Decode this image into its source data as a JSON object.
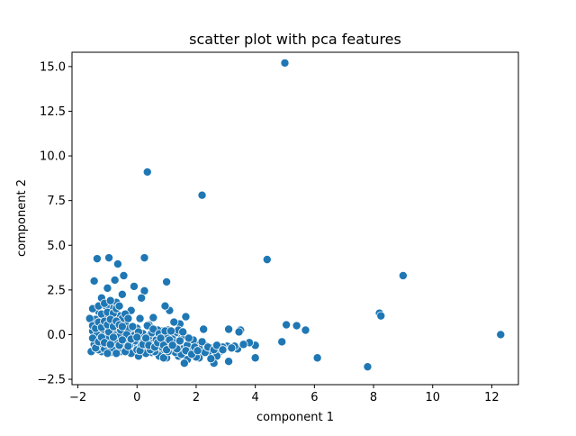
{
  "chart_data": {
    "type": "scatter",
    "title": "scatter plot with pca features",
    "xlabel": "component 1",
    "ylabel": "component 2",
    "xlim": [
      -2.2,
      12.9
    ],
    "ylim": [
      -2.8,
      15.8
    ],
    "xticks": [
      -2,
      0,
      2,
      4,
      6,
      8,
      10,
      12
    ],
    "yticks": [
      -2.5,
      0.0,
      2.5,
      5.0,
      7.5,
      10.0,
      12.5,
      15.0
    ],
    "xtick_labels": [
      "−2",
      "0",
      "2",
      "4",
      "6",
      "8",
      "10",
      "12"
    ],
    "ytick_labels": [
      "−2.5",
      "0.0",
      "2.5",
      "5.0",
      "7.5",
      "10.0",
      "12.5",
      "15.0"
    ],
    "grid": false,
    "legend": "none",
    "colors": {
      "marker": "#1f77b4",
      "marker_edge": "#ffffff",
      "axis": "#000000"
    },
    "series": [
      {
        "name": "pca features",
        "points": [
          [
            5.0,
            15.2
          ],
          [
            0.35,
            9.1
          ],
          [
            2.2,
            7.8
          ],
          [
            4.4,
            4.2
          ],
          [
            12.3,
            0.0
          ],
          [
            9.0,
            3.3
          ],
          [
            8.2,
            1.2
          ],
          [
            8.25,
            1.05
          ],
          [
            7.8,
            -1.8
          ],
          [
            6.1,
            -1.3
          ],
          [
            5.7,
            0.25
          ],
          [
            5.4,
            0.5
          ],
          [
            5.05,
            0.55
          ],
          [
            4.9,
            -0.4
          ],
          [
            4.0,
            -1.3
          ],
          [
            4.0,
            -0.6
          ],
          [
            3.8,
            -0.45
          ],
          [
            3.5,
            0.25
          ],
          [
            3.45,
            0.15
          ],
          [
            3.4,
            -0.8
          ],
          [
            3.3,
            -0.65
          ],
          [
            3.1,
            0.3
          ],
          [
            3.1,
            -1.5
          ],
          [
            3.05,
            -0.65
          ],
          [
            2.9,
            -0.7
          ],
          [
            2.8,
            -0.95
          ],
          [
            2.7,
            -1.2
          ],
          [
            2.6,
            -1.6
          ],
          [
            2.5,
            -0.75
          ],
          [
            2.4,
            -1.05
          ],
          [
            2.3,
            -0.6
          ],
          [
            2.25,
            0.3
          ],
          [
            2.2,
            -0.9
          ],
          [
            2.1,
            -1.3
          ],
          [
            2.0,
            -0.55
          ],
          [
            1.9,
            -1.05
          ],
          [
            1.85,
            -0.65
          ],
          [
            1.7,
            -1.4
          ],
          [
            1.65,
            1.0
          ],
          [
            1.6,
            -1.6
          ],
          [
            1.55,
            -0.8
          ],
          [
            1.5,
            -0.2
          ],
          [
            1.45,
            0.6
          ],
          [
            1.4,
            -1.2
          ],
          [
            1.35,
            -0.5
          ],
          [
            1.3,
            0.1
          ],
          [
            1.25,
            0.7
          ],
          [
            1.2,
            -0.9
          ],
          [
            1.1,
            1.35
          ],
          [
            1.05,
            0.25
          ],
          [
            1.0,
            -1.3
          ],
          [
            1.0,
            2.95
          ],
          [
            0.95,
            1.6
          ],
          [
            0.9,
            -0.4
          ],
          [
            0.85,
            0.2
          ],
          [
            0.8,
            -0.9
          ],
          [
            0.75,
            -1.2
          ],
          [
            0.7,
            0.25
          ],
          [
            0.6,
            -0.5
          ],
          [
            0.55,
            0.95
          ],
          [
            0.5,
            -1.0
          ],
          [
            0.45,
            -0.2
          ],
          [
            0.4,
            0.55
          ],
          [
            0.3,
            -0.7
          ],
          [
            0.25,
            4.3
          ],
          [
            0.25,
            2.45
          ],
          [
            0.2,
            -0.3
          ],
          [
            0.15,
            2.05
          ],
          [
            0.1,
            0.9
          ],
          [
            0.05,
            -1.2
          ],
          [
            0.0,
            0.35
          ],
          [
            -0.05,
            -0.55
          ],
          [
            -0.1,
            2.7
          ],
          [
            -0.15,
            -0.9
          ],
          [
            -0.2,
            1.35
          ],
          [
            -0.25,
            0.2
          ],
          [
            -0.3,
            -0.3
          ],
          [
            -0.4,
            0.6
          ],
          [
            -0.45,
            3.3
          ],
          [
            -0.5,
            2.25
          ],
          [
            -0.55,
            -0.95
          ],
          [
            -0.6,
            1.05
          ],
          [
            -0.65,
            3.95
          ],
          [
            -0.7,
            1.8
          ],
          [
            -0.7,
            0.2
          ],
          [
            -0.75,
            3.05
          ],
          [
            -0.8,
            -0.4
          ],
          [
            -0.85,
            1.45
          ],
          [
            -0.9,
            0.5
          ],
          [
            -0.95,
            4.3
          ],
          [
            -1.0,
            -0.7
          ],
          [
            -1.0,
            2.6
          ],
          [
            -1.05,
            1.6
          ],
          [
            -1.1,
            0.1
          ],
          [
            -1.15,
            1.0
          ],
          [
            -1.2,
            2.05
          ],
          [
            -1.2,
            -0.95
          ],
          [
            -1.25,
            0.55
          ],
          [
            -1.3,
            1.3
          ],
          [
            -1.35,
            4.25
          ],
          [
            -1.4,
            -0.3
          ],
          [
            -1.4,
            0.85
          ],
          [
            -1.45,
            3.0
          ],
          [
            -1.5,
            0.2
          ],
          [
            -1.5,
            1.45
          ],
          [
            -1.55,
            -0.95
          ],
          [
            -1.6,
            0.9
          ],
          [
            -1.3,
            -0.85
          ],
          [
            -1.2,
            -0.5
          ],
          [
            -1.1,
            -0.8
          ],
          [
            -1.0,
            -0.2
          ],
          [
            -0.9,
            -1.0
          ],
          [
            -0.8,
            0.85
          ],
          [
            -0.7,
            -0.75
          ],
          [
            -0.6,
            -0.1
          ],
          [
            -0.5,
            -0.8
          ],
          [
            -0.4,
            -0.4
          ],
          [
            -0.3,
            0.3
          ],
          [
            -0.2,
            -1.05
          ],
          [
            -0.1,
            -0.05
          ],
          [
            0.0,
            -0.85
          ],
          [
            0.1,
            -0.45
          ],
          [
            0.2,
            0.05
          ],
          [
            0.3,
            -1.05
          ],
          [
            0.4,
            -0.1
          ],
          [
            0.5,
            0.1
          ],
          [
            0.6,
            -0.95
          ],
          [
            0.7,
            -0.2
          ],
          [
            0.8,
            -0.55
          ],
          [
            0.9,
            -1.3
          ],
          [
            1.0,
            0.0
          ],
          [
            1.1,
            -0.65
          ],
          [
            1.2,
            -0.25
          ],
          [
            1.3,
            -1.0
          ],
          [
            1.4,
            0.25
          ],
          [
            1.5,
            -1.1
          ],
          [
            1.6,
            -0.05
          ],
          [
            1.7,
            -0.6
          ],
          [
            1.8,
            -0.95
          ],
          [
            1.9,
            -0.3
          ],
          [
            2.0,
            -1.25
          ],
          [
            2.1,
            -0.75
          ],
          [
            2.2,
            -0.4
          ],
          [
            2.3,
            -1.0
          ],
          [
            2.4,
            -0.7
          ],
          [
            2.5,
            -1.35
          ],
          [
            2.6,
            -0.85
          ],
          [
            2.7,
            -0.6
          ],
          [
            2.9,
            -0.85
          ],
          [
            3.2,
            -0.75
          ],
          [
            3.6,
            -0.55
          ],
          [
            -1.45,
            -0.55
          ],
          [
            -1.35,
            0.0
          ],
          [
            -1.25,
            -0.3
          ],
          [
            -1.15,
            0.3
          ],
          [
            -1.05,
            -0.5
          ],
          [
            -0.95,
            0.15
          ],
          [
            -0.85,
            -0.75
          ],
          [
            -0.75,
            0.4
          ],
          [
            -0.65,
            -0.5
          ],
          [
            -0.55,
            0.25
          ],
          [
            -0.45,
            -0.65
          ],
          [
            -0.35,
            0.0
          ],
          [
            -0.25,
            -0.6
          ],
          [
            -0.15,
            0.45
          ],
          [
            -0.05,
            -0.35
          ],
          [
            0.05,
            0.15
          ],
          [
            0.15,
            -0.6
          ],
          [
            0.35,
            0.5
          ],
          [
            0.45,
            -0.85
          ],
          [
            0.55,
            0.3
          ],
          [
            0.65,
            -0.3
          ],
          [
            0.75,
            0.05
          ],
          [
            0.85,
            -0.7
          ],
          [
            0.95,
            0.2
          ],
          [
            1.05,
            -0.95
          ],
          [
            1.15,
            0.2
          ],
          [
            1.25,
            -0.45
          ],
          [
            1.35,
            -0.8
          ],
          [
            1.45,
            -0.35
          ],
          [
            1.55,
            0.15
          ],
          [
            1.65,
            -0.9
          ],
          [
            1.75,
            -0.2
          ],
          [
            1.85,
            -1.1
          ],
          [
            1.95,
            -0.7
          ],
          [
            2.05,
            -0.9
          ],
          [
            -1.5,
            0.5
          ],
          [
            -1.3,
            1.6
          ],
          [
            -1.2,
            1.15
          ],
          [
            -1.1,
            1.75
          ],
          [
            -1.0,
            1.25
          ],
          [
            -0.9,
            1.9
          ],
          [
            -0.8,
            1.2
          ],
          [
            -0.7,
            1.45
          ],
          [
            -0.6,
            1.6
          ],
          [
            -0.5,
            0.9
          ],
          [
            -0.4,
            1.15
          ],
          [
            -0.3,
            0.9
          ],
          [
            -1.4,
            0.35
          ],
          [
            -1.3,
            0.7
          ],
          [
            -1.2,
            0.4
          ],
          [
            -1.1,
            0.75
          ],
          [
            -1.0,
            0.55
          ],
          [
            -0.9,
            0.85
          ],
          [
            -0.8,
            0.45
          ],
          [
            -0.7,
            0.75
          ],
          [
            -0.6,
            0.55
          ],
          [
            -0.5,
            0.45
          ],
          [
            -1.5,
            -0.2
          ],
          [
            -1.4,
            -0.75
          ],
          [
            -1.3,
            -0.4
          ],
          [
            -1.2,
            -0.15
          ],
          [
            -1.1,
            -0.45
          ],
          [
            -1.0,
            -1.05
          ],
          [
            -0.9,
            -0.55
          ],
          [
            -0.8,
            -0.15
          ],
          [
            -0.7,
            -1.05
          ],
          [
            -0.6,
            -0.6
          ],
          [
            -0.5,
            -0.3
          ],
          [
            -0.4,
            -0.95
          ],
          [
            -0.3,
            -0.65
          ],
          [
            -0.2,
            -0.25
          ],
          [
            0.0,
            -0.15
          ],
          [
            0.1,
            -0.9
          ],
          [
            0.2,
            -0.55
          ],
          [
            0.3,
            -0.2
          ],
          [
            0.4,
            -0.6
          ],
          [
            0.6,
            -0.7
          ],
          [
            0.7,
            -0.45
          ],
          [
            0.8,
            -0.2
          ],
          [
            0.9,
            -0.6
          ],
          [
            1.0,
            -0.85
          ],
          [
            1.1,
            -0.3
          ],
          [
            1.2,
            -0.6
          ]
        ]
      }
    ]
  }
}
